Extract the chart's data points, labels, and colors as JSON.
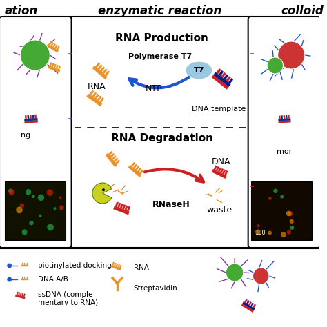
{
  "title_center": "enzymatic reaction",
  "title_left": "ation",
  "title_right": "colloid",
  "rna_production_title": "RNA Production",
  "rna_degradation_title": "RNA Degradation",
  "polymerase_label": "Polymerase T7",
  "ntp_label": "NTP",
  "dna_template_label": "DNA template",
  "t7_label": "T7",
  "rna_label": "RNA",
  "rnase_label": "RNaseH",
  "dna_label": "DNA",
  "waste_label": "waste",
  "legend_line1": "biotinylated docking",
  "legend_line2": "DNA A/B",
  "legend_line3a": "ssDNA (comple-",
  "legend_line3b": "mentary to RNA)",
  "legend_rna": "RNA",
  "legend_strep": "Streptavidin",
  "bg_color": "#ffffff",
  "orange_color": "#e8932a",
  "red_color": "#cc2020",
  "blue_color": "#1e56cc",
  "light_blue_color": "#9ac8e0",
  "green_color": "#44aa33",
  "yellow_green": "#c8d020",
  "purple_color": "#8833aa",
  "dark_navy": "#0a1a88"
}
